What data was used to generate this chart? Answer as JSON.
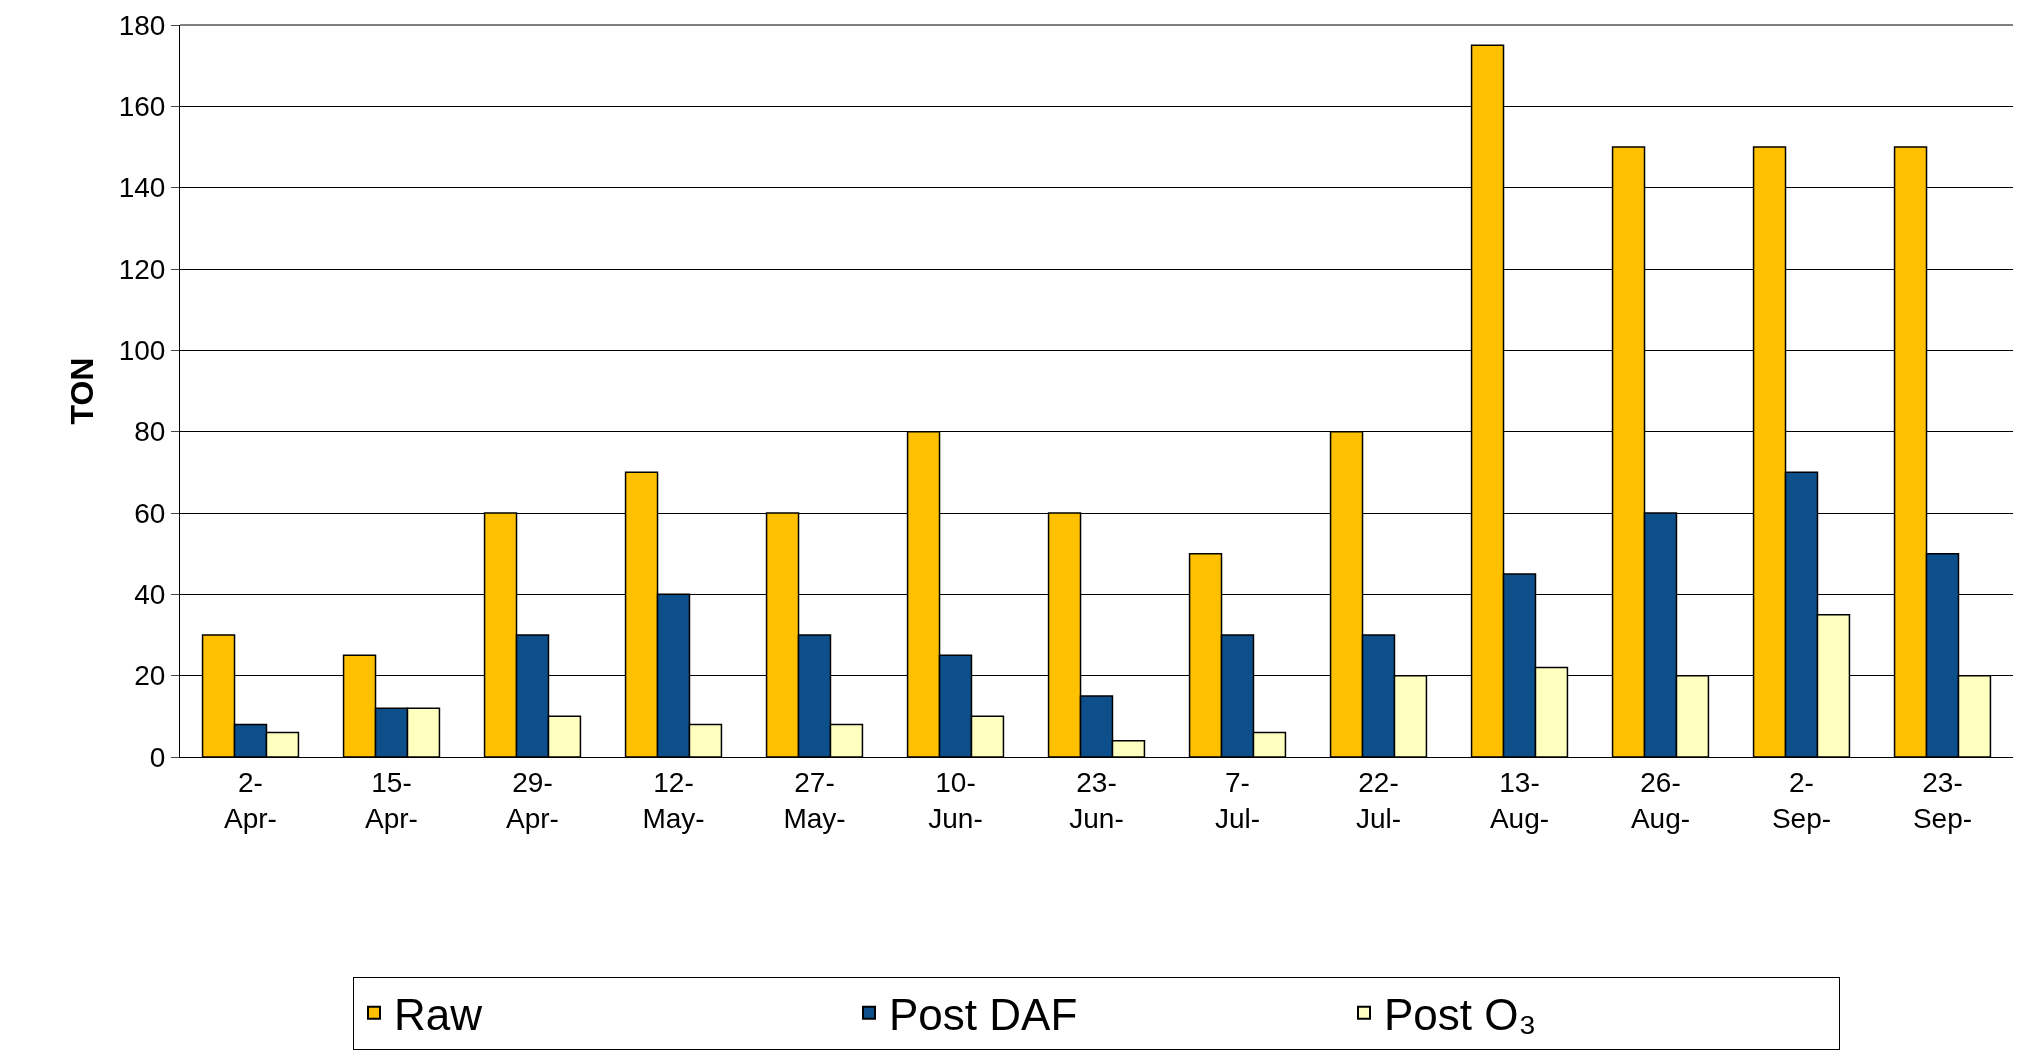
{
  "chart_data": {
    "type": "bar",
    "ylabel": "TON",
    "categories": [
      "2-\nApr-",
      "15-\nApr-",
      "29-\nApr-",
      "12-\nMay-",
      "27-\nMay-",
      "10-\nJun-",
      "23-\nJun-",
      "7-\nJul-",
      "22-\nJul-",
      "13-\nAug-",
      "26-\nAug-",
      "2-\nSep-",
      "23-\nSep-"
    ],
    "series": [
      {
        "name": "Raw",
        "color": "#ffc000",
        "values": [
          30,
          25,
          60,
          70,
          60,
          80,
          60,
          50,
          80,
          175,
          150,
          150,
          150
        ]
      },
      {
        "name": "Post DAF",
        "color": "#0d4f8b",
        "values": [
          8,
          12,
          30,
          40,
          30,
          25,
          15,
          30,
          30,
          45,
          60,
          70,
          50
        ]
      },
      {
        "name": "Post O₃",
        "color": "#ffffc0",
        "values": [
          6,
          12,
          10,
          8,
          8,
          10,
          4,
          6,
          20,
          22,
          20,
          35,
          20
        ]
      }
    ],
    "ylim": [
      0,
      180
    ],
    "yticks": [
      0,
      20,
      40,
      60,
      80,
      100,
      120,
      140,
      160,
      180
    ],
    "grid": "y",
    "legend": "bottom"
  }
}
